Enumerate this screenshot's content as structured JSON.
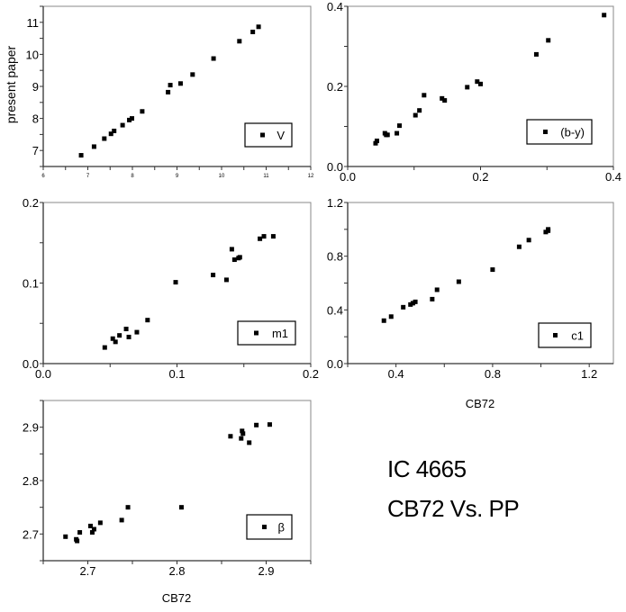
{
  "figure": {
    "annotation_line1": "IC 4665",
    "annotation_line2": "CB72 Vs. PP",
    "shared_ylabel": "present paper",
    "shared_xlabel": "CB72",
    "marker_color": "#000000",
    "axis_color": "#333333"
  },
  "chart_data": [
    {
      "type": "scatter",
      "panel": "top-left",
      "legend": "V",
      "xlabel": "",
      "ylabel": "present paper",
      "xlim": [
        6,
        12
      ],
      "ylim": [
        6.5,
        11.5
      ],
      "xticks": [
        "6",
        "7",
        "8",
        "9",
        "10",
        "11",
        "12"
      ],
      "yticks": [
        "7",
        "8",
        "9",
        "10",
        "11"
      ],
      "points": [
        [
          6.85,
          6.85
        ],
        [
          7.14,
          7.12
        ],
        [
          7.37,
          7.37
        ],
        [
          7.52,
          7.52
        ],
        [
          7.59,
          7.61
        ],
        [
          7.78,
          7.79
        ],
        [
          7.93,
          7.95
        ],
        [
          7.99,
          8.0
        ],
        [
          8.22,
          8.22
        ],
        [
          8.8,
          8.82
        ],
        [
          8.85,
          9.04
        ],
        [
          9.08,
          9.09
        ],
        [
          9.35,
          9.37
        ],
        [
          9.82,
          9.87
        ],
        [
          10.4,
          10.41
        ],
        [
          10.7,
          10.7
        ],
        [
          10.83,
          10.86
        ]
      ]
    },
    {
      "type": "scatter",
      "panel": "top-right",
      "legend": "(b-y)",
      "xlabel": "",
      "ylabel": "",
      "xlim": [
        0.0,
        0.4
      ],
      "ylim": [
        0.0,
        0.4
      ],
      "xticks": [
        "0.0",
        "0.2",
        "0.4"
      ],
      "yticks": [
        "0.0",
        "0.2",
        "0.4"
      ],
      "points": [
        [
          0.042,
          0.058
        ],
        [
          0.044,
          0.064
        ],
        [
          0.056,
          0.083
        ],
        [
          0.058,
          0.079
        ],
        [
          0.06,
          0.079
        ],
        [
          0.074,
          0.083
        ],
        [
          0.078,
          0.102
        ],
        [
          0.102,
          0.128
        ],
        [
          0.108,
          0.14
        ],
        [
          0.115,
          0.178
        ],
        [
          0.142,
          0.17
        ],
        [
          0.146,
          0.165
        ],
        [
          0.18,
          0.198
        ],
        [
          0.195,
          0.212
        ],
        [
          0.2,
          0.206
        ],
        [
          0.284,
          0.28
        ],
        [
          0.302,
          0.315
        ],
        [
          0.386,
          0.378
        ]
      ]
    },
    {
      "type": "scatter",
      "panel": "middle-left",
      "legend": "m1",
      "xlabel": "",
      "ylabel": "",
      "xlim": [
        0.0,
        0.2
      ],
      "ylim": [
        0.0,
        0.2
      ],
      "xticks": [
        "0.0",
        "0.1",
        "0.2"
      ],
      "yticks": [
        "0.0",
        "0.1",
        "0.2"
      ],
      "points": [
        [
          0.046,
          0.02
        ],
        [
          0.052,
          0.031
        ],
        [
          0.054,
          0.027
        ],
        [
          0.057,
          0.035
        ],
        [
          0.062,
          0.043
        ],
        [
          0.064,
          0.033
        ],
        [
          0.07,
          0.039
        ],
        [
          0.078,
          0.054
        ],
        [
          0.099,
          0.101
        ],
        [
          0.127,
          0.11
        ],
        [
          0.137,
          0.104
        ],
        [
          0.141,
          0.142
        ],
        [
          0.143,
          0.129
        ],
        [
          0.146,
          0.131
        ],
        [
          0.147,
          0.132
        ],
        [
          0.162,
          0.155
        ],
        [
          0.165,
          0.158
        ],
        [
          0.172,
          0.158
        ]
      ]
    },
    {
      "type": "scatter",
      "panel": "middle-right",
      "legend": "c1",
      "xlabel": "CB72",
      "ylabel": "",
      "xlim": [
        0.2,
        1.3
      ],
      "ylim": [
        0.0,
        1.2
      ],
      "xticks": [
        "0.4",
        "0.8",
        "1.2"
      ],
      "yticks": [
        "0.0",
        "0.4",
        "0.8",
        "1.2"
      ],
      "points": [
        [
          0.35,
          0.32
        ],
        [
          0.38,
          0.35
        ],
        [
          0.43,
          0.42
        ],
        [
          0.46,
          0.44
        ],
        [
          0.47,
          0.45
        ],
        [
          0.48,
          0.46
        ],
        [
          0.55,
          0.48
        ],
        [
          0.57,
          0.55
        ],
        [
          0.66,
          0.61
        ],
        [
          0.8,
          0.7
        ],
        [
          0.91,
          0.87
        ],
        [
          0.95,
          0.92
        ],
        [
          1.02,
          0.98
        ],
        [
          1.03,
          0.99
        ],
        [
          1.03,
          1.0
        ]
      ]
    },
    {
      "type": "scatter",
      "panel": "bottom-left",
      "legend": "β",
      "xlabel": "CB72",
      "ylabel": "",
      "xlim": [
        2.65,
        2.95
      ],
      "ylim": [
        2.65,
        2.95
      ],
      "xticks": [
        "2.7",
        "2.8",
        "2.9"
      ],
      "yticks": [
        "2.7",
        "2.8",
        "2.9"
      ],
      "points": [
        [
          2.675,
          2.695
        ],
        [
          2.687,
          2.69
        ],
        [
          2.688,
          2.687
        ],
        [
          2.691,
          2.703
        ],
        [
          2.703,
          2.715
        ],
        [
          2.705,
          2.703
        ],
        [
          2.707,
          2.709
        ],
        [
          2.714,
          2.721
        ],
        [
          2.738,
          2.726
        ],
        [
          2.745,
          2.75
        ],
        [
          2.805,
          2.75
        ],
        [
          2.86,
          2.883
        ],
        [
          2.872,
          2.879
        ],
        [
          2.873,
          2.893
        ],
        [
          2.874,
          2.888
        ],
        [
          2.881,
          2.871
        ],
        [
          2.889,
          2.904
        ],
        [
          2.904,
          2.905
        ]
      ]
    }
  ]
}
